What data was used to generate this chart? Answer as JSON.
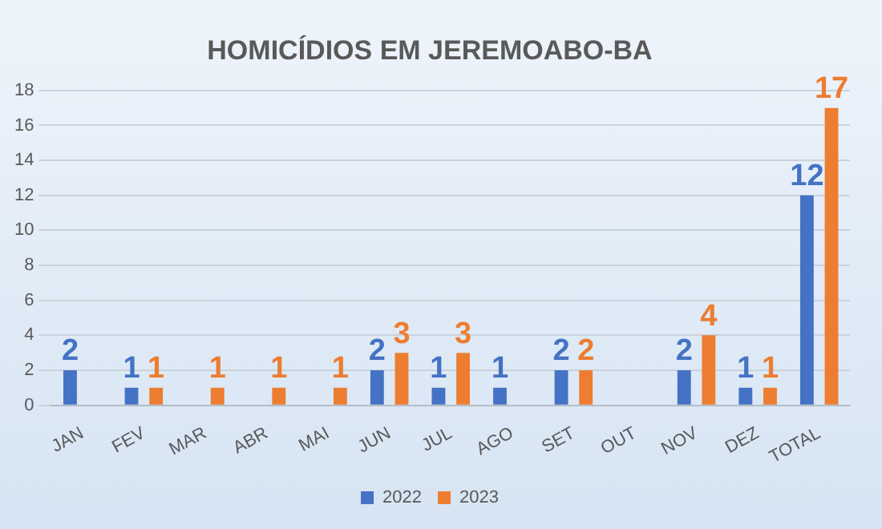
{
  "chart_data": {
    "type": "bar",
    "title": "HOMICÍDIOS EM JEREMOABO-BA",
    "categories": [
      "JAN",
      "FEV",
      "MAR",
      "ABR",
      "MAI",
      "JUN",
      "JUL",
      "AGO",
      "SET",
      "OUT",
      "NOV",
      "DEZ",
      "TOTAL"
    ],
    "series": [
      {
        "name": "2022",
        "color": "#4472c4",
        "values": [
          2,
          1,
          0,
          0,
          0,
          2,
          1,
          1,
          2,
          0,
          2,
          1,
          12
        ],
        "value_labels": [
          "2",
          "1",
          null,
          null,
          null,
          "2",
          "1",
          "1",
          "2",
          null,
          "2",
          "1",
          "12"
        ]
      },
      {
        "name": "2023",
        "color": "#ed7d31",
        "values": [
          0,
          1,
          1,
          1,
          1,
          3,
          3,
          0,
          2,
          0,
          4,
          1,
          17
        ],
        "value_labels": [
          null,
          "1",
          "1",
          "1",
          "1",
          "3",
          "3",
          null,
          "2",
          null,
          "4",
          "1",
          "17"
        ]
      }
    ],
    "ylim": [
      0,
      18
    ],
    "yticks": [
      0,
      2,
      4,
      6,
      8,
      10,
      12,
      14,
      16,
      18
    ],
    "grid": "y",
    "legend": "bottom"
  }
}
